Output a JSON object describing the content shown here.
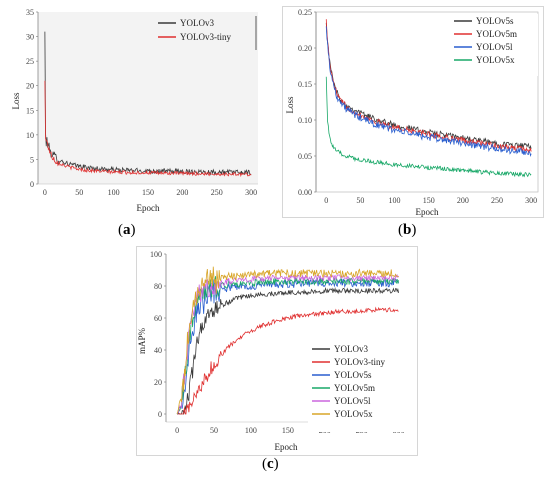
{
  "captions": {
    "a": "a",
    "b": "b",
    "c": "c"
  },
  "chart_data": [
    {
      "id": "a",
      "type": "line",
      "title": "",
      "xlabel": "Epoch",
      "ylabel": "Loss",
      "xlim": [
        -10,
        310
      ],
      "ylim": [
        0,
        35
      ],
      "xticks": [
        0,
        50,
        100,
        150,
        200,
        250,
        300
      ],
      "yticks": [
        0,
        5,
        10,
        15,
        20,
        25,
        30,
        35
      ],
      "grid": false,
      "legend": "top-right",
      "series": [
        {
          "name": "YOLOv3",
          "color": "#3a3a3a",
          "x": [
            0,
            1,
            2,
            3,
            5,
            8,
            12,
            16,
            20,
            25,
            30,
            40,
            50,
            60,
            70,
            80,
            90,
            100,
            120,
            140,
            160,
            180,
            200,
            220,
            240,
            260,
            280,
            300
          ],
          "y": [
            31.0,
            10.0,
            8.0,
            8.8,
            7.8,
            6.6,
            5.8,
            5.3,
            4.9,
            4.6,
            4.3,
            3.9,
            3.6,
            3.4,
            3.2,
            3.1,
            3.0,
            2.9,
            2.8,
            2.7,
            2.65,
            2.6,
            2.55,
            2.5,
            2.45,
            2.4,
            2.35,
            2.3
          ],
          "noise": 0.5
        },
        {
          "name": "YOLOv3-tiny",
          "color": "#e03030",
          "x": [
            0,
            1,
            2,
            3,
            5,
            8,
            12,
            16,
            20,
            25,
            30,
            40,
            50,
            60,
            70,
            80,
            90,
            100,
            120,
            140,
            160,
            180,
            200,
            220,
            240,
            260,
            280,
            300
          ],
          "y": [
            21.0,
            9.0,
            8.5,
            9.2,
            7.5,
            6.2,
            5.3,
            4.7,
            4.3,
            4.0,
            3.7,
            3.3,
            3.0,
            2.8,
            2.7,
            2.6,
            2.5,
            2.45,
            2.35,
            2.3,
            2.25,
            2.2,
            2.15,
            2.1,
            2.05,
            2.0,
            2.0,
            1.95
          ],
          "noise": 0.35
        }
      ]
    },
    {
      "id": "b",
      "type": "line",
      "title": "",
      "xlabel": "Epoch",
      "ylabel": "Loss",
      "xlim": [
        -15,
        310
      ],
      "ylim": [
        0,
        0.25
      ],
      "xticks": [
        0,
        50,
        100,
        150,
        200,
        250,
        300
      ],
      "yticks": [
        0.0,
        0.05,
        0.1,
        0.15,
        0.2,
        0.25
      ],
      "yticklabels": [
        "0.00",
        "0.05",
        "0.10",
        "0.15",
        "0.20",
        "0.25"
      ],
      "grid": false,
      "legend": "top-right",
      "series": [
        {
          "name": "YOLOv5s",
          "color": "#3a3a3a",
          "x": [
            0,
            2,
            5,
            10,
            15,
            20,
            30,
            40,
            50,
            75,
            100,
            125,
            150,
            175,
            200,
            225,
            250,
            275,
            300
          ],
          "y": [
            0.235,
            0.21,
            0.18,
            0.155,
            0.14,
            0.13,
            0.12,
            0.115,
            0.11,
            0.1,
            0.093,
            0.088,
            0.083,
            0.079,
            0.075,
            0.071,
            0.068,
            0.065,
            0.063
          ],
          "noise": 0.004
        },
        {
          "name": "YOLOv5m",
          "color": "#e03030",
          "x": [
            0,
            2,
            5,
            10,
            15,
            20,
            30,
            40,
            50,
            75,
            100,
            125,
            150,
            175,
            200,
            225,
            250,
            275,
            300
          ],
          "y": [
            0.24,
            0.21,
            0.178,
            0.153,
            0.138,
            0.128,
            0.118,
            0.112,
            0.107,
            0.097,
            0.09,
            0.085,
            0.08,
            0.076,
            0.072,
            0.068,
            0.064,
            0.061,
            0.058
          ],
          "noise": 0.004
        },
        {
          "name": "YOLOv5l",
          "color": "#2a5fcf",
          "x": [
            0,
            2,
            5,
            10,
            15,
            20,
            30,
            40,
            50,
            75,
            100,
            125,
            150,
            175,
            200,
            225,
            250,
            275,
            300
          ],
          "y": [
            0.23,
            0.205,
            0.175,
            0.15,
            0.135,
            0.125,
            0.115,
            0.108,
            0.103,
            0.093,
            0.086,
            0.081,
            0.076,
            0.072,
            0.068,
            0.064,
            0.06,
            0.057,
            0.054
          ],
          "noise": 0.005
        },
        {
          "name": "YOLOv5x",
          "color": "#19a868",
          "x": [
            0,
            2,
            5,
            10,
            15,
            20,
            30,
            40,
            50,
            75,
            100,
            125,
            150,
            175,
            200,
            225,
            250,
            275,
            300
          ],
          "y": [
            0.16,
            0.1,
            0.075,
            0.062,
            0.057,
            0.054,
            0.05,
            0.047,
            0.045,
            0.041,
            0.038,
            0.036,
            0.034,
            0.032,
            0.03,
            0.028,
            0.026,
            0.025,
            0.024
          ],
          "noise": 0.003
        }
      ]
    },
    {
      "id": "c",
      "type": "line",
      "title": "",
      "xlabel": "Epoch",
      "ylabel": "mAP%",
      "xlim": [
        -15,
        310
      ],
      "ylim": [
        -5,
        100
      ],
      "xticks": [
        0,
        50,
        100,
        150,
        200,
        250,
        300
      ],
      "yticks": [
        0,
        20,
        40,
        60,
        80,
        100
      ],
      "grid": false,
      "legend": "bottom-right",
      "series": [
        {
          "name": "YOLOv3",
          "color": "#3a3a3a",
          "x": [
            0,
            5,
            10,
            15,
            20,
            25,
            30,
            40,
            50,
            60,
            70,
            80,
            100,
            125,
            150,
            175,
            200,
            225,
            250,
            275,
            300
          ],
          "y": [
            0,
            0,
            2,
            10,
            25,
            40,
            50,
            60,
            65,
            68,
            70,
            72,
            74,
            75,
            76,
            76,
            77,
            77,
            77,
            77,
            77
          ],
          "noise": 1.5
        },
        {
          "name": "YOLOv3-tiny",
          "color": "#e03030",
          "x": [
            0,
            10,
            20,
            30,
            40,
            50,
            60,
            70,
            80,
            100,
            120,
            140,
            160,
            180,
            200,
            220,
            240,
            260,
            280,
            300
          ],
          "y": [
            0,
            0,
            5,
            15,
            24,
            31,
            37,
            42,
            46,
            52,
            56,
            59,
            61,
            62,
            63,
            64,
            64,
            65,
            65,
            65
          ],
          "noise": 1.4
        },
        {
          "name": "YOLOv5s",
          "color": "#2a5fcf",
          "x": [
            0,
            5,
            10,
            15,
            20,
            25,
            30,
            40,
            50,
            70,
            100,
            125,
            150,
            175,
            200,
            225,
            250,
            275,
            300
          ],
          "y": [
            0,
            3,
            15,
            35,
            52,
            62,
            68,
            74,
            77,
            79,
            80,
            81,
            81,
            82,
            82,
            82,
            82,
            82,
            82
          ],
          "noise": 2.5
        },
        {
          "name": "YOLOv5m",
          "color": "#19a868",
          "x": [
            0,
            5,
            10,
            15,
            20,
            25,
            30,
            40,
            50,
            70,
            100,
            125,
            150,
            175,
            200,
            225,
            250,
            275,
            300
          ],
          "y": [
            0,
            5,
            20,
            42,
            58,
            67,
            72,
            77,
            79,
            81,
            82,
            83,
            83,
            83,
            83,
            83,
            83,
            83,
            83
          ],
          "noise": 2.2
        },
        {
          "name": "YOLOv5l",
          "color": "#cc66dd",
          "x": [
            0,
            5,
            10,
            15,
            20,
            25,
            30,
            40,
            50,
            70,
            100,
            125,
            150,
            175,
            200,
            225,
            250,
            275,
            300
          ],
          "y": [
            0,
            6,
            22,
            45,
            60,
            69,
            74,
            79,
            81,
            83,
            84,
            85,
            85,
            85,
            85,
            85,
            85,
            85,
            85
          ],
          "noise": 2.0
        },
        {
          "name": "YOLOv5x",
          "color": "#d8a528",
          "x": [
            0,
            5,
            10,
            15,
            20,
            25,
            30,
            40,
            50,
            70,
            100,
            125,
            150,
            175,
            200,
            225,
            250,
            275,
            300
          ],
          "y": [
            0,
            8,
            25,
            48,
            63,
            72,
            78,
            82,
            84,
            86,
            87,
            88,
            88,
            88,
            88,
            88,
            88,
            88,
            88
          ],
          "noise": 2.4
        }
      ]
    }
  ]
}
